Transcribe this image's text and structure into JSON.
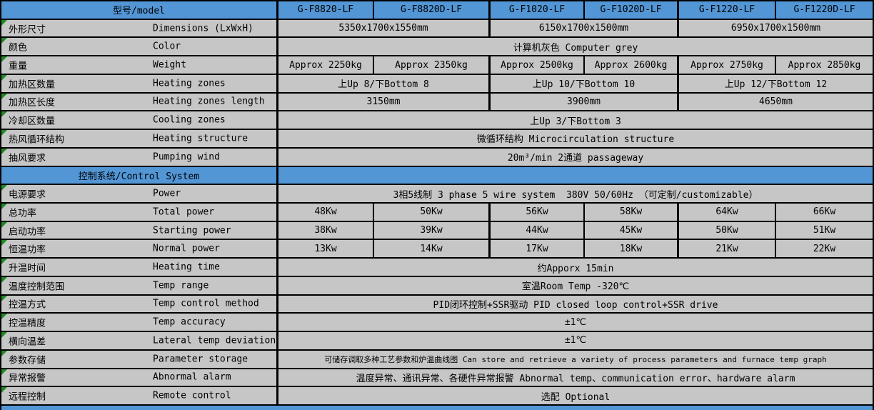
{
  "colors": {
    "header_blue": "#5296d6",
    "cell_gray": "#c6c6c6",
    "border_black": "#000000",
    "marker_green": "#1f8a1f"
  },
  "table": {
    "model_row": {
      "label": "型号/model",
      "models": [
        "G-F8820-LF",
        "G-F8820D-LF",
        "G-F1020-LF",
        "G-F1020D-LF",
        "G-F1220-LF",
        "G-F1220D-LF"
      ]
    },
    "rows": [
      {
        "zh": "外形尺寸",
        "en": "Dimensions (LxWxH)",
        "cells": [
          {
            "span": 2,
            "text": "5350x1700x1550mm"
          },
          {
            "span": 2,
            "text": "6150x1700x1500mm"
          },
          {
            "span": 2,
            "text": "6950x1700x1500mm"
          }
        ]
      },
      {
        "zh": "颜色",
        "en": "Color",
        "cells": [
          {
            "span": 6,
            "text": "计算机灰色 Computer grey"
          }
        ]
      },
      {
        "zh": "重量",
        "en": "Weight",
        "cells": [
          {
            "span": 1,
            "text": "Approx 2250kg"
          },
          {
            "span": 1,
            "text": "Approx 2350kg"
          },
          {
            "span": 1,
            "text": "Approx 2500kg"
          },
          {
            "span": 1,
            "text": "Approx 2600kg"
          },
          {
            "span": 1,
            "text": "Approx 2750kg"
          },
          {
            "span": 1,
            "text": "Approx 2850kg"
          }
        ]
      },
      {
        "zh": "加热区数量",
        "en": "Heating zones",
        "cells": [
          {
            "span": 2,
            "text": "上Up 8/下Bottom 8"
          },
          {
            "span": 2,
            "text": "上Up 10/下Bottom 10"
          },
          {
            "span": 2,
            "text": "上Up 12/下Bottom 12"
          }
        ]
      },
      {
        "zh": "加热区长度",
        "en": "Heating zones length",
        "cells": [
          {
            "span": 2,
            "text": "3150mm"
          },
          {
            "span": 2,
            "text": "3900mm"
          },
          {
            "span": 2,
            "text": "4650mm"
          }
        ]
      },
      {
        "zh": "冷却区数量",
        "en": "Cooling zones",
        "cells": [
          {
            "span": 6,
            "text": "上Up 3/下Bottom 3"
          }
        ]
      },
      {
        "zh": "热风循环结构",
        "en": "Heating structure",
        "cells": [
          {
            "span": 6,
            "text": "微循环结构 Microcirculation structure"
          }
        ]
      },
      {
        "zh": "抽风要求",
        "en": "Pumping wind",
        "cells": [
          {
            "span": 6,
            "text": "20m³/min 2通道 passageway"
          }
        ]
      },
      {
        "type": "section",
        "label": "控制系统/Control System"
      },
      {
        "zh": "电源要求",
        "en": "Power",
        "cells": [
          {
            "span": 6,
            "text": "3相5线制 3 phase 5 wire system  380V 50/60Hz （可定制/customizable）"
          }
        ]
      },
      {
        "zh": "总功率",
        "en": "Total power",
        "cells": [
          {
            "span": 1,
            "text": "48Kw"
          },
          {
            "span": 1,
            "text": "50Kw"
          },
          {
            "span": 1,
            "text": "56Kw"
          },
          {
            "span": 1,
            "text": "58Kw"
          },
          {
            "span": 1,
            "text": "64Kw"
          },
          {
            "span": 1,
            "text": "66Kw"
          }
        ]
      },
      {
        "zh": "启动功率",
        "en": "Starting power",
        "cells": [
          {
            "span": 1,
            "text": "38Kw"
          },
          {
            "span": 1,
            "text": "39Kw"
          },
          {
            "span": 1,
            "text": "44Kw"
          },
          {
            "span": 1,
            "text": "45Kw"
          },
          {
            "span": 1,
            "text": "50Kw"
          },
          {
            "span": 1,
            "text": "51Kw"
          }
        ]
      },
      {
        "zh": "恒温功率",
        "en": "Normal power",
        "cells": [
          {
            "span": 1,
            "text": "13Kw"
          },
          {
            "span": 1,
            "text": "14Kw"
          },
          {
            "span": 1,
            "text": "17Kw"
          },
          {
            "span": 1,
            "text": "18Kw"
          },
          {
            "span": 1,
            "text": "21Kw"
          },
          {
            "span": 1,
            "text": "22Kw"
          }
        ]
      },
      {
        "zh": "升温时间",
        "en": "Heating time",
        "cells": [
          {
            "span": 6,
            "text": "约Apporx 15min"
          }
        ]
      },
      {
        "zh": "温度控制范围",
        "en": "Temp range",
        "cells": [
          {
            "span": 6,
            "text": "室温Room Temp -320℃"
          }
        ]
      },
      {
        "zh": "控温方式",
        "en": "Temp control method",
        "cells": [
          {
            "span": 6,
            "text": "PID闭环控制+SSR驱动 PID closed loop control+SSR drive"
          }
        ]
      },
      {
        "zh": "控温精度",
        "en": "Temp accuracy",
        "cells": [
          {
            "span": 6,
            "text": "±1℃"
          }
        ]
      },
      {
        "zh": "横向温差",
        "en": "Lateral temp deviation",
        "cells": [
          {
            "span": 6,
            "text": "±1℃"
          }
        ]
      },
      {
        "zh": "参数存储",
        "en": "Parameter storage",
        "cells": [
          {
            "span": 6,
            "text": "可储存调取多种工艺参数和炉温曲线图 Can store and retrieve a variety of process parameters and furnace temp graph"
          }
        ]
      },
      {
        "zh": "异常报警",
        "en": "Abnormal alarm",
        "cells": [
          {
            "span": 6,
            "text": "温度异常、通讯异常、各硬件异常报警 Abnormal temp、communication error、hardware alarm"
          }
        ]
      },
      {
        "zh": "远程控制",
        "en": "Remote control",
        "cells": [
          {
            "span": 6,
            "text": "选配 Optional"
          }
        ]
      }
    ]
  }
}
